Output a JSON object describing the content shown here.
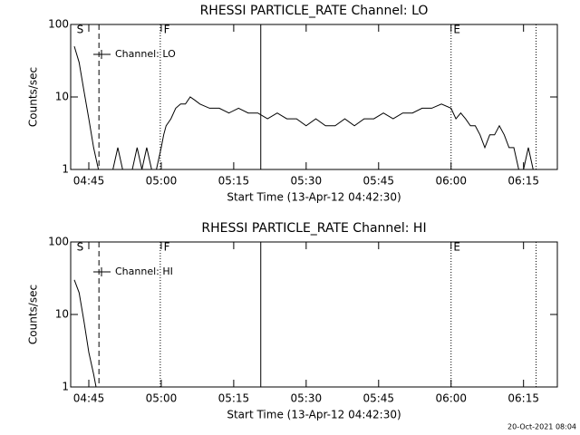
{
  "chart_data": [
    {
      "type": "line",
      "title": "RHESSI PARTICLE_RATE Channel: LO",
      "x_label": "Start Time (13-Apr-12 04:42:30)",
      "y_label": "Counts/sec",
      "log_y": true,
      "legend": "top-left",
      "xlim": [
        281.25,
        382
      ],
      "ylim": [
        1,
        100
      ],
      "yticks": [
        1,
        10,
        100
      ],
      "xticks": [
        {
          "value": 285,
          "label": "04:45"
        },
        {
          "value": 300,
          "label": "05:00"
        },
        {
          "value": 315,
          "label": "05:15"
        },
        {
          "value": 330,
          "label": "05:30"
        },
        {
          "value": 345,
          "label": "05:45"
        },
        {
          "value": 360,
          "label": "06:00"
        },
        {
          "value": 375,
          "label": "06:15"
        }
      ],
      "flags": [
        {
          "label": "S",
          "x": 282.5
        },
        {
          "label": "F",
          "x": 300.5
        },
        {
          "label": "E",
          "x": 360.5
        }
      ],
      "vlines": [
        {
          "x": 287.1,
          "style": "dashed"
        },
        {
          "x": 299.8,
          "style": "dotted"
        },
        {
          "x": 320.6,
          "style": "solid"
        },
        {
          "x": 360,
          "style": "dotted"
        },
        {
          "x": 377.6,
          "style": "dotted"
        }
      ],
      "x": [
        282,
        283,
        284,
        285,
        286,
        287,
        288,
        290,
        291,
        292,
        294,
        295,
        296,
        297,
        298,
        299,
        300,
        300.5,
        301,
        302,
        303,
        304,
        305,
        306,
        307,
        308,
        310,
        312,
        314,
        316,
        318,
        320,
        322,
        324,
        326,
        328,
        330,
        332,
        334,
        336,
        338,
        340,
        342,
        344,
        346,
        348,
        350,
        352,
        354,
        356,
        358,
        360,
        361,
        362,
        363,
        364,
        365,
        366,
        367,
        368,
        369,
        370,
        371,
        372,
        373,
        374,
        375,
        376,
        377
      ],
      "series": [
        {
          "name": "Channel: LO",
          "color": "#000000",
          "values": [
            50,
            30,
            12,
            5,
            2,
            1,
            1,
            1,
            2,
            1,
            1,
            2,
            1,
            2,
            1,
            1,
            2,
            3,
            4,
            5,
            7,
            8,
            8,
            10,
            9,
            8,
            7,
            7,
            6,
            7,
            6,
            6,
            5,
            6,
            5,
            5,
            4,
            5,
            4,
            4,
            5,
            4,
            5,
            5,
            6,
            5,
            6,
            6,
            7,
            7,
            8,
            7,
            5,
            6,
            5,
            4,
            4,
            3,
            2,
            3,
            3,
            4,
            3,
            2,
            2,
            1,
            1,
            2,
            1
          ]
        }
      ]
    },
    {
      "type": "line",
      "title": "RHESSI PARTICLE_RATE Channel: HI",
      "x_label": "Start Time (13-Apr-12 04:42:30)",
      "y_label": "Counts/sec",
      "log_y": true,
      "legend": "top-left",
      "xlim": [
        281.25,
        382
      ],
      "ylim": [
        1,
        100
      ],
      "yticks": [
        1,
        10,
        100
      ],
      "xticks": [
        {
          "value": 285,
          "label": "04:45"
        },
        {
          "value": 300,
          "label": "05:00"
        },
        {
          "value": 315,
          "label": "05:15"
        },
        {
          "value": 330,
          "label": "05:30"
        },
        {
          "value": 345,
          "label": "05:45"
        },
        {
          "value": 360,
          "label": "06:00"
        },
        {
          "value": 375,
          "label": "06:15"
        }
      ],
      "flags": [
        {
          "label": "S",
          "x": 282.5
        },
        {
          "label": "F",
          "x": 300.5
        },
        {
          "label": "E",
          "x": 360.5
        }
      ],
      "vlines": [
        {
          "x": 287.1,
          "style": "dashed"
        },
        {
          "x": 299.8,
          "style": "dotted"
        },
        {
          "x": 320.6,
          "style": "solid"
        },
        {
          "x": 360,
          "style": "dotted"
        },
        {
          "x": 377.6,
          "style": "dotted"
        }
      ],
      "x": [
        282,
        283,
        284,
        285,
        286,
        286.5
      ],
      "series": [
        {
          "name": "Channel: HI",
          "color": "#000000",
          "values": [
            30,
            20,
            8,
            3,
            1.5,
            1
          ]
        }
      ]
    }
  ],
  "footer": "20-Oct-2021 08:04"
}
